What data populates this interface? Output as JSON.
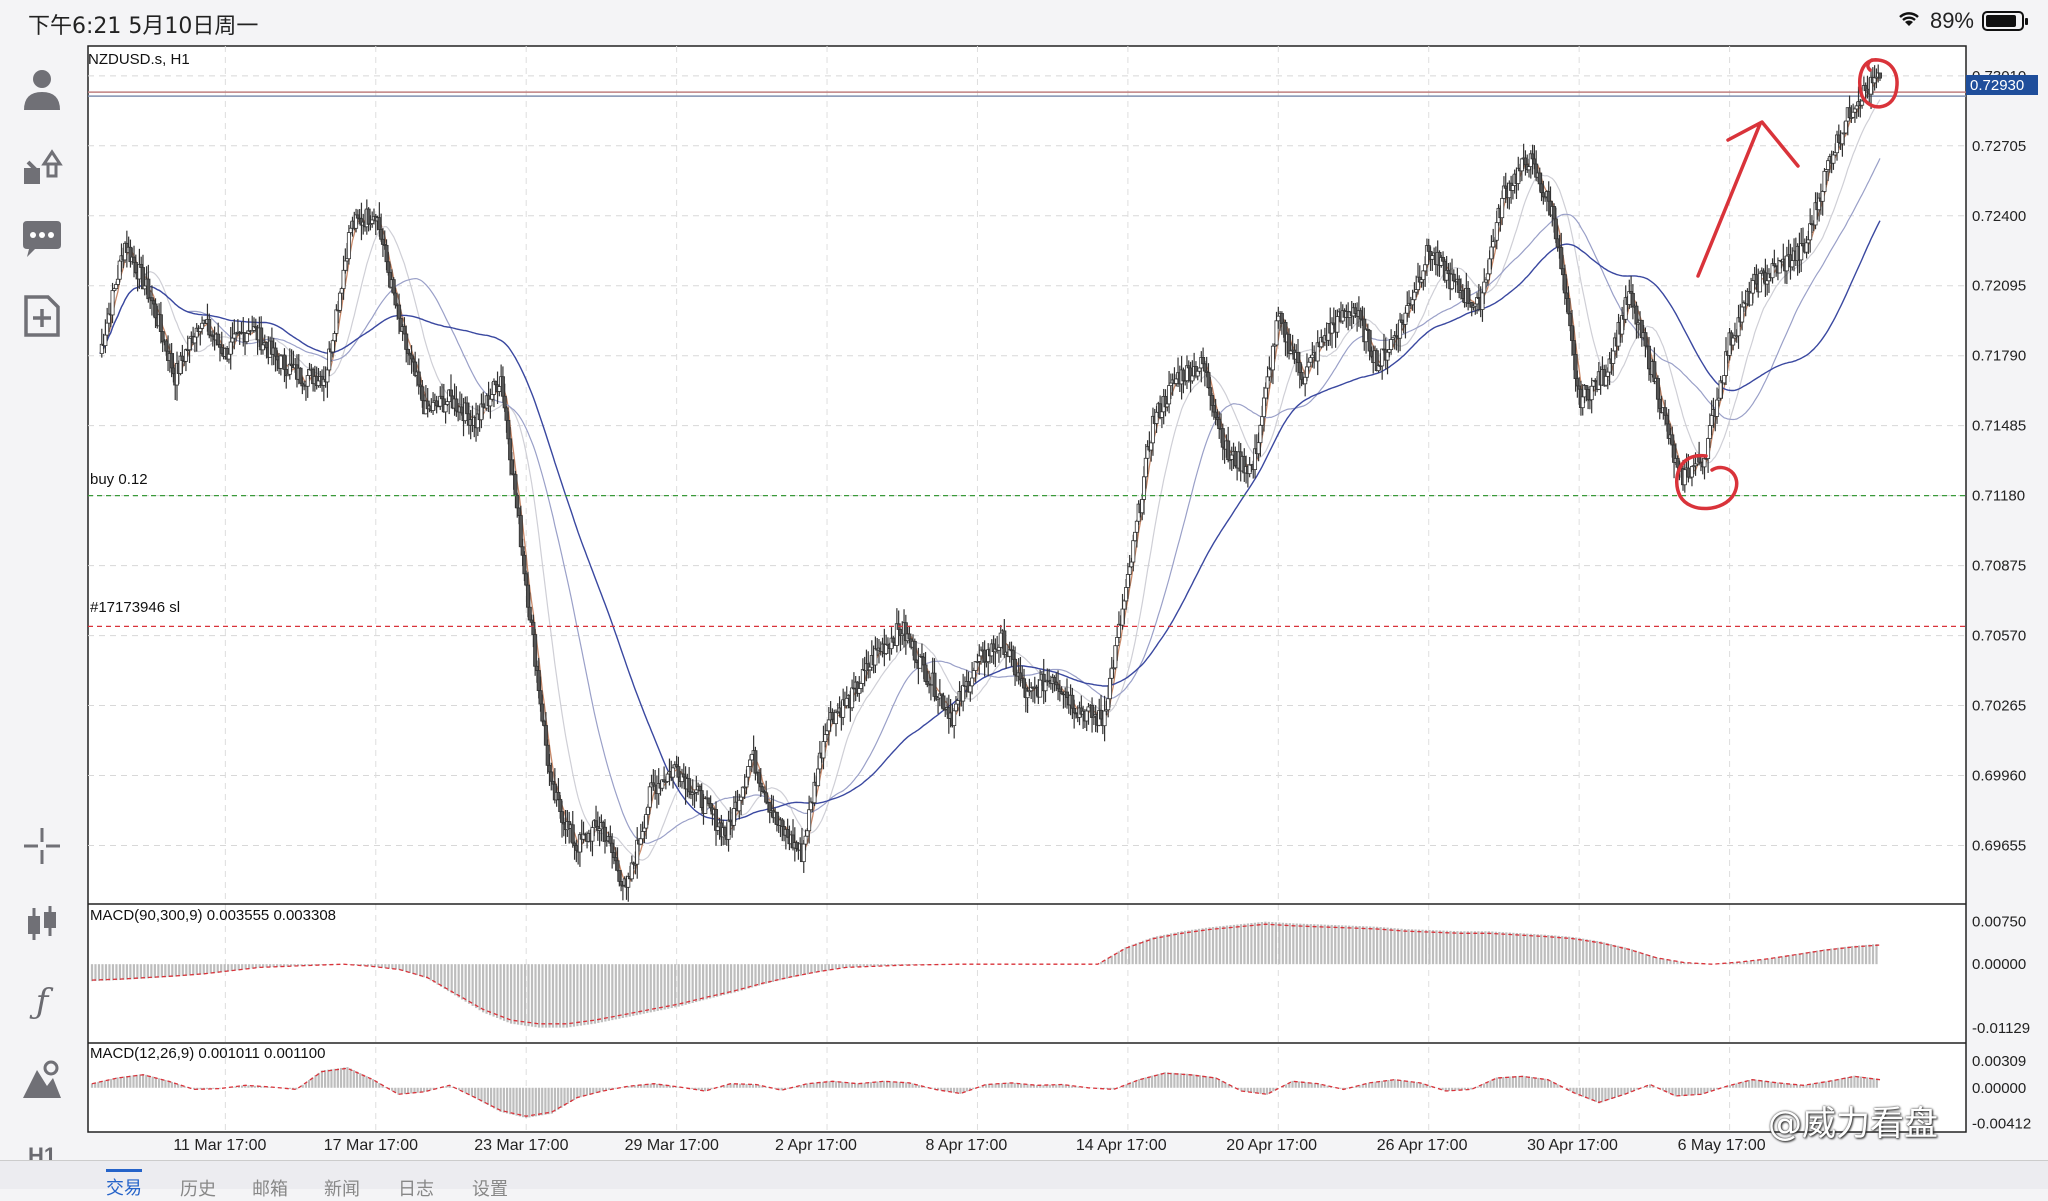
{
  "status_bar": {
    "time": "下午6:21  5月10日周一",
    "battery": "89%"
  },
  "sidebar": {
    "items": [
      {
        "name": "account-icon",
        "glyph": "👤"
      },
      {
        "name": "trade-icon",
        "glyph": "⇅"
      },
      {
        "name": "chat-icon",
        "glyph": "💬"
      },
      {
        "name": "new-order-icon",
        "glyph": "⊞"
      },
      {
        "name": "crosshair-icon",
        "glyph": "┼"
      },
      {
        "name": "candles-icon",
        "glyph": "▮"
      },
      {
        "name": "indicator-icon",
        "glyph": "ƒ"
      },
      {
        "name": "objects-icon",
        "glyph": "◭"
      },
      {
        "name": "timeframe-label",
        "glyph": "H1"
      }
    ]
  },
  "bottom_tabs": [
    "交易",
    "历史",
    "邮箱",
    "新闻",
    "日志",
    "设置"
  ],
  "watermark": "@威力看盘",
  "chart_data": {
    "type": "candlestick",
    "title": "NZDUSD.s, H1",
    "current_price": "0.72930",
    "current_price_color": "#1f4e9b",
    "ylim": [
      0.694,
      0.7314
    ],
    "yticks": [
      "0.73010",
      "0.72705",
      "0.72400",
      "0.72095",
      "0.71790",
      "0.71485",
      "0.71180",
      "0.70875",
      "0.70570",
      "0.70265",
      "0.69960",
      "0.69655"
    ],
    "xticks": [
      "11 Mar 17:00",
      "17 Mar 17:00",
      "23 Mar 17:00",
      "29 Mar 17:00",
      "2 Apr 17:00",
      "8 Apr 17:00",
      "14 Apr 17:00",
      "20 Apr 17:00",
      "26 Apr 17:00",
      "30 Apr 17:00",
      "6 May 17:00"
    ],
    "xtick_index": [
      5,
      11,
      17,
      23,
      29,
      35,
      41,
      47,
      53,
      59,
      65
    ],
    "lines": [
      {
        "label": "buy 0.12",
        "price": 0.7118,
        "color": "#3a9a3a",
        "style": "dashed"
      },
      {
        "label": "#17173946 sl",
        "price": 0.7061,
        "color": "#d9333a",
        "style": "dashed"
      }
    ],
    "price_path": [
      [
        0,
        0.718
      ],
      [
        1,
        0.7228
      ],
      [
        2,
        0.7205
      ],
      [
        3,
        0.717
      ],
      [
        4,
        0.7195
      ],
      [
        5,
        0.718
      ],
      [
        6,
        0.7192
      ],
      [
        7,
        0.7178
      ],
      [
        8,
        0.717
      ],
      [
        9,
        0.717
      ],
      [
        10,
        0.7235
      ],
      [
        11,
        0.7242
      ],
      [
        12,
        0.719
      ],
      [
        13,
        0.7155
      ],
      [
        14,
        0.716
      ],
      [
        15,
        0.715
      ],
      [
        16,
        0.717
      ],
      [
        17,
        0.708
      ],
      [
        18,
        0.699
      ],
      [
        19,
        0.6965
      ],
      [
        20,
        0.6975
      ],
      [
        21,
        0.6945
      ],
      [
        22,
        0.699
      ],
      [
        23,
        0.7
      ],
      [
        24,
        0.6985
      ],
      [
        25,
        0.697
      ],
      [
        26,
        0.7005
      ],
      [
        27,
        0.6975
      ],
      [
        28,
        0.6962
      ],
      [
        29,
        0.702
      ],
      [
        30,
        0.703
      ],
      [
        31,
        0.705
      ],
      [
        32,
        0.706
      ],
      [
        33,
        0.704
      ],
      [
        34,
        0.7022
      ],
      [
        35,
        0.7045
      ],
      [
        36,
        0.7055
      ],
      [
        37,
        0.703
      ],
      [
        38,
        0.704
      ],
      [
        39,
        0.7025
      ],
      [
        40,
        0.702
      ],
      [
        41,
        0.708
      ],
      [
        42,
        0.715
      ],
      [
        43,
        0.717
      ],
      [
        44,
        0.7175
      ],
      [
        45,
        0.7135
      ],
      [
        46,
        0.713
      ],
      [
        47,
        0.7195
      ],
      [
        48,
        0.717
      ],
      [
        49,
        0.719
      ],
      [
        50,
        0.72
      ],
      [
        51,
        0.7175
      ],
      [
        52,
        0.7195
      ],
      [
        53,
        0.7225
      ],
      [
        54,
        0.721
      ],
      [
        55,
        0.72
      ],
      [
        56,
        0.725
      ],
      [
        57,
        0.7265
      ],
      [
        58,
        0.724
      ],
      [
        59,
        0.716
      ],
      [
        60,
        0.717
      ],
      [
        61,
        0.7205
      ],
      [
        62,
        0.717
      ],
      [
        63,
        0.7125
      ],
      [
        64,
        0.7135
      ],
      [
        65,
        0.7185
      ],
      [
        66,
        0.721
      ],
      [
        67,
        0.7218
      ],
      [
        68,
        0.7225
      ],
      [
        69,
        0.7265
      ],
      [
        70,
        0.729
      ],
      [
        71,
        0.73
      ]
    ],
    "macd1": {
      "label": "MACD(90,300,9) 0.003555 0.003308",
      "ylim": [
        -0.0125,
        0.0085
      ],
      "yticks": [
        "0.00750",
        "0.00000",
        "-0.01129"
      ],
      "values": [
        -0.003,
        -0.0028,
        -0.0025,
        -0.0022,
        -0.0018,
        -0.0012,
        -0.0006,
        -0.0004,
        -0.0002,
        0.0,
        -0.0004,
        -0.001,
        -0.0025,
        -0.0055,
        -0.0085,
        -0.0105,
        -0.0112,
        -0.0112,
        -0.0105,
        -0.0095,
        -0.0085,
        -0.0075,
        -0.0062,
        -0.005,
        -0.0036,
        -0.0024,
        -0.0014,
        -0.0006,
        -0.0004,
        -0.0002,
        -0.0001,
        0.0,
        0.0,
        0.0,
        0.0,
        0.0,
        0.0,
        0.003,
        0.0048,
        0.0058,
        0.0065,
        0.007,
        0.0075,
        0.0072,
        0.007,
        0.0068,
        0.0066,
        0.0062,
        0.006,
        0.0058,
        0.0058,
        0.0055,
        0.0052,
        0.0048,
        0.004,
        0.0028,
        0.0012,
        0.0003,
        0.0,
        0.0004,
        0.001,
        0.0018,
        0.0026,
        0.0032,
        0.0036
      ]
    },
    "macd2": {
      "label": "MACD(12,26,9) 0.001011 0.001100",
      "ylim": [
        -0.0042,
        0.0038
      ],
      "yticks": [
        "0.00309",
        "0.00000",
        "-0.00412"
      ],
      "values": [
        0.0005,
        0.0012,
        0.0016,
        0.0008,
        -0.0002,
        -0.0001,
        0.0003,
        0.0001,
        -0.0002,
        0.002,
        0.0024,
        0.001,
        -0.0008,
        -0.0005,
        0.0003,
        -0.0012,
        -0.0028,
        -0.0035,
        -0.003,
        -0.0012,
        -0.0004,
        0.0002,
        0.0005,
        0.0001,
        -0.0004,
        0.0005,
        0.0004,
        -0.0003,
        0.0005,
        0.0008,
        0.0005,
        0.0008,
        0.0006,
        -0.0002,
        -0.0007,
        0.0004,
        0.0006,
        0.0003,
        0.0004,
        0.0,
        -0.0002,
        0.001,
        0.0018,
        0.0016,
        0.0012,
        -0.0004,
        -0.0008,
        0.0008,
        0.0005,
        -0.0002,
        0.0006,
        0.001,
        0.0006,
        -0.0004,
        -0.0002,
        0.0012,
        0.0014,
        0.001,
        -0.0006,
        -0.0018,
        -0.0008,
        0.0004,
        -0.001,
        -0.0008,
        0.0002,
        0.001,
        0.0006,
        0.0003,
        0.0008,
        0.0014,
        0.001
      ]
    }
  }
}
